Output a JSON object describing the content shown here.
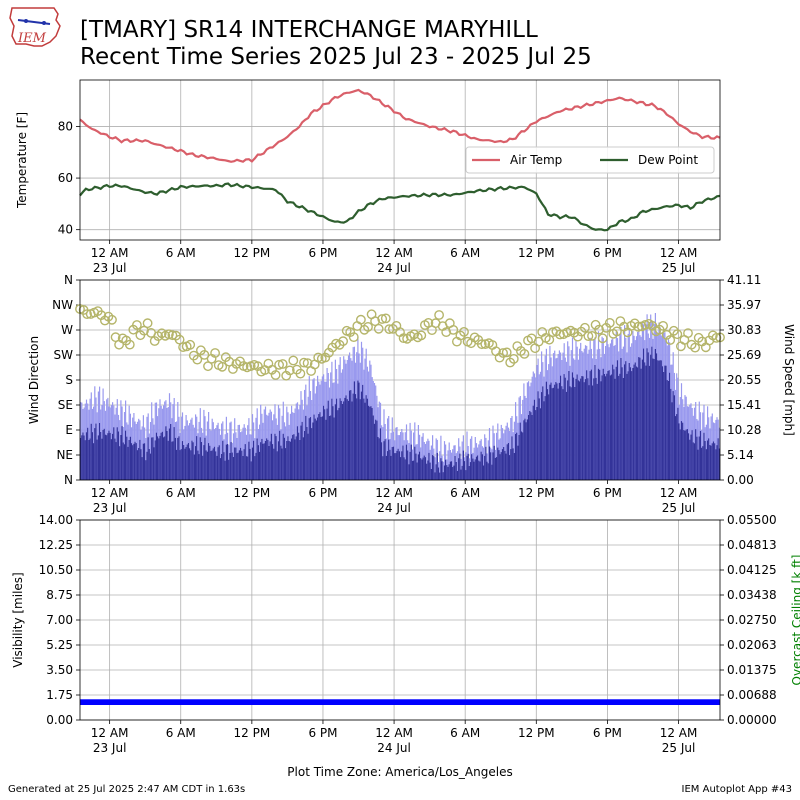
{
  "header": {
    "title_line1": "[TMARY] SR14 INTERCHANGE MARYHILL",
    "title_line2": "Recent Time Series 2025 Jul 23 - 2025 Jul 25",
    "logo_text": "IEM"
  },
  "footer": {
    "generated": "Generated at 25 Jul 2025 2:47 AM CDT in 1.63s",
    "app": "IEM Autoplot App #43",
    "timezone": "Plot Time Zone: America/Los_Angeles"
  },
  "colors": {
    "temp": "#d95f69",
    "dew": "#2e5e2e",
    "gust": "#9999ee",
    "speed": "#333399",
    "dir": "#b5b56a",
    "vis": "#0000ff",
    "ceiling": "#008000"
  },
  "chart_data": [
    {
      "type": "line",
      "xlim": [
        -2.5,
        51.5
      ],
      "x_ticks": [
        0,
        6,
        12,
        18,
        24,
        30,
        36,
        42,
        48
      ],
      "x_tick_labels": [
        "12 AM",
        "6 AM",
        "12 PM",
        "6 PM",
        "12 AM",
        "6 AM",
        "12 PM",
        "6 PM",
        "12 AM"
      ],
      "x_date_labels": [
        {
          "at": 0,
          "text": "23 Jul"
        },
        {
          "at": 24,
          "text": "24 Jul"
        },
        {
          "at": 48,
          "text": "25 Jul"
        }
      ],
      "ylabel": "Temperature [F]",
      "ylim": [
        36,
        98
      ],
      "y_ticks": [
        40,
        60,
        80
      ],
      "grid": true,
      "legend": "right",
      "series": [
        {
          "name": "Air Temp",
          "points": [
            [
              -2.5,
              82.5
            ],
            [
              -1.5,
              79
            ],
            [
              0,
              76
            ],
            [
              1,
              74.5
            ],
            [
              3,
              74.5
            ],
            [
              4,
              73
            ],
            [
              6,
              70.5
            ],
            [
              7,
              69
            ],
            [
              9,
              67.5
            ],
            [
              10,
              66.5
            ],
            [
              12,
              67
            ],
            [
              13,
              70
            ],
            [
              15,
              76
            ],
            [
              16,
              80
            ],
            [
              17,
              85
            ],
            [
              18,
              88
            ],
            [
              19,
              91
            ],
            [
              20,
              93
            ],
            [
              21,
              94
            ],
            [
              22,
              92
            ],
            [
              23,
              89
            ],
            [
              24,
              86
            ],
            [
              25,
              83
            ],
            [
              27,
              80
            ],
            [
              29,
              78
            ],
            [
              31,
              75
            ],
            [
              33,
              74
            ],
            [
              34,
              75
            ],
            [
              36,
              82
            ],
            [
              38,
              86
            ],
            [
              40,
              88
            ],
            [
              42,
              90
            ],
            [
              43,
              91
            ],
            [
              44,
              90
            ],
            [
              46,
              88
            ],
            [
              47,
              85
            ],
            [
              48,
              81
            ],
            [
              49,
              78
            ],
            [
              50,
              76
            ],
            [
              51.5,
              75.5
            ]
          ]
        },
        {
          "name": "Dew Point",
          "points": [
            [
              -2.5,
              53.5
            ],
            [
              -2,
              55.5
            ],
            [
              0,
              57
            ],
            [
              1,
              57
            ],
            [
              3,
              54.5
            ],
            [
              4,
              54
            ],
            [
              6,
              56.5
            ],
            [
              8,
              57
            ],
            [
              9,
              57
            ],
            [
              10,
              57.5
            ],
            [
              12,
              56.5
            ],
            [
              14,
              55.5
            ],
            [
              15,
              51
            ],
            [
              17,
              47
            ],
            [
              18,
              45
            ],
            [
              19,
              43
            ],
            [
              20,
              43
            ],
            [
              21,
              47
            ],
            [
              22,
              50
            ],
            [
              23,
              52
            ],
            [
              25,
              53
            ],
            [
              27,
              53.5
            ],
            [
              29,
              53.5
            ],
            [
              31,
              55
            ],
            [
              33,
              56
            ],
            [
              35,
              56.5
            ],
            [
              36,
              54
            ],
            [
              37,
              46
            ],
            [
              38,
              45
            ],
            [
              39,
              45
            ],
            [
              40,
              42
            ],
            [
              41,
              40
            ],
            [
              42,
              40
            ],
            [
              43,
              43
            ],
            [
              44,
              44
            ],
            [
              45,
              47
            ],
            [
              47,
              49
            ],
            [
              48,
              49.5
            ],
            [
              49,
              48.5
            ],
            [
              50,
              51
            ],
            [
              51.5,
              53
            ]
          ]
        }
      ]
    },
    {
      "type": "bar",
      "xlim": [
        -2.5,
        51.5
      ],
      "x_ticks": [
        0,
        6,
        12,
        18,
        24,
        30,
        36,
        42,
        48
      ],
      "x_tick_labels": [
        "12 AM",
        "6 AM",
        "12 PM",
        "6 PM",
        "12 AM",
        "6 AM",
        "12 PM",
        "6 PM",
        "12 AM"
      ],
      "x_date_labels": [
        {
          "at": 0,
          "text": "23 Jul"
        },
        {
          "at": 24,
          "text": "24 Jul"
        },
        {
          "at": 48,
          "text": "25 Jul"
        }
      ],
      "ylabel_left": "Wind Direction",
      "y_left_ticks": [
        "N",
        "NE",
        "E",
        "SE",
        "S",
        "SW",
        "W",
        "NW",
        "N"
      ],
      "ylabel_right": "Wind Speed [mph]",
      "y_right_ticks": [
        "0.00",
        "5.14",
        "10.28",
        "15.41",
        "20.55",
        "25.69",
        "30.83",
        "35.97",
        "41.11"
      ],
      "ylim_right": [
        0,
        41.11
      ],
      "grid": true,
      "series": [
        {
          "role": "gust",
          "points": [
            [
              -2.5,
              15
            ],
            [
              -1,
              17
            ],
            [
              1,
              14
            ],
            [
              3,
              11
            ],
            [
              4,
              15
            ],
            [
              5,
              16
            ],
            [
              6,
              12
            ],
            [
              8,
              12
            ],
            [
              9,
              11
            ],
            [
              10,
              10
            ],
            [
              12,
              11
            ],
            [
              13,
              14
            ],
            [
              15,
              13
            ],
            [
              16,
              16
            ],
            [
              17,
              19
            ],
            [
              18,
              21
            ],
            [
              19,
              22
            ],
            [
              20,
              25
            ],
            [
              21,
              27
            ],
            [
              22,
              23
            ],
            [
              23,
              12
            ],
            [
              24,
              10
            ],
            [
              26,
              9
            ],
            [
              28,
              6
            ],
            [
              30,
              7
            ],
            [
              32,
              8
            ],
            [
              34,
              12
            ],
            [
              35,
              18
            ],
            [
              36,
              23
            ],
            [
              37,
              25
            ],
            [
              38,
              26
            ],
            [
              40,
              27
            ],
            [
              42,
              28
            ],
            [
              43,
              29
            ],
            [
              44,
              29
            ],
            [
              45,
              31
            ],
            [
              46,
              32
            ],
            [
              47,
              29
            ],
            [
              48,
              18
            ],
            [
              49,
              15
            ],
            [
              50,
              13
            ],
            [
              51.5,
              12
            ]
          ]
        },
        {
          "role": "speed",
          "points": [
            [
              -2.5,
              9
            ],
            [
              -1,
              10
            ],
            [
              1,
              9
            ],
            [
              3,
              6
            ],
            [
              4,
              9
            ],
            [
              5,
              10
            ],
            [
              6,
              7
            ],
            [
              8,
              7
            ],
            [
              9,
              6
            ],
            [
              10,
              6
            ],
            [
              12,
              6
            ],
            [
              13,
              8
            ],
            [
              15,
              8
            ],
            [
              16,
              10
            ],
            [
              17,
              12
            ],
            [
              18,
              14
            ],
            [
              19,
              15
            ],
            [
              20,
              17
            ],
            [
              21,
              19
            ],
            [
              22,
              15
            ],
            [
              23,
              7
            ],
            [
              24,
              6
            ],
            [
              26,
              5
            ],
            [
              28,
              3
            ],
            [
              30,
              4
            ],
            [
              32,
              5
            ],
            [
              34,
              7
            ],
            [
              35,
              12
            ],
            [
              36,
              16
            ],
            [
              37,
              19
            ],
            [
              38,
              20
            ],
            [
              40,
              21
            ],
            [
              42,
              22
            ],
            [
              43,
              23
            ],
            [
              44,
              23
            ],
            [
              45,
              25
            ],
            [
              46,
              26
            ],
            [
              47,
              22
            ],
            [
              48,
              12
            ],
            [
              49,
              9
            ],
            [
              50,
              8
            ],
            [
              51.5,
              7
            ]
          ]
        },
        {
          "role": "direction",
          "points": [
            [
              -2.5,
              303
            ],
            [
              -1,
              300
            ],
            [
              0,
              290
            ],
            [
              1,
              240
            ],
            [
              2,
              265
            ],
            [
              3,
              275
            ],
            [
              4,
              255
            ],
            [
              5,
              265
            ],
            [
              6,
              250
            ],
            [
              7,
              230
            ],
            [
              8,
              220
            ],
            [
              9,
              215
            ],
            [
              10,
              210
            ],
            [
              12,
              205
            ],
            [
              13,
              200
            ],
            [
              15,
              200
            ],
            [
              17,
              205
            ],
            [
              18,
              220
            ],
            [
              19,
              240
            ],
            [
              20,
              260
            ],
            [
              21,
              275
            ],
            [
              22,
              285
            ],
            [
              23,
              285
            ],
            [
              24,
              275
            ],
            [
              25,
              255
            ],
            [
              26,
              260
            ],
            [
              27,
              280
            ],
            [
              28,
              285
            ],
            [
              29,
              265
            ],
            [
              30,
              255
            ],
            [
              31,
              250
            ],
            [
              32,
              245
            ],
            [
              33,
              225
            ],
            [
              34,
              220
            ],
            [
              35,
              240
            ],
            [
              36,
              250
            ],
            [
              37,
              260
            ],
            [
              38,
              265
            ],
            [
              40,
              265
            ],
            [
              42,
              270
            ],
            [
              43,
              275
            ],
            [
              44,
              275
            ],
            [
              45,
              280
            ],
            [
              46,
              275
            ],
            [
              47,
              265
            ],
            [
              48,
              255
            ],
            [
              49,
              250
            ],
            [
              50,
              245
            ],
            [
              51.5,
              260
            ]
          ]
        }
      ]
    },
    {
      "type": "line",
      "xlim": [
        -2.5,
        51.5
      ],
      "x_ticks": [
        0,
        6,
        12,
        18,
        24,
        30,
        36,
        42,
        48
      ],
      "x_tick_labels": [
        "12 AM",
        "6 AM",
        "12 PM",
        "6 PM",
        "12 AM",
        "6 AM",
        "12 PM",
        "6 PM",
        "12 AM"
      ],
      "x_date_labels": [
        {
          "at": 0,
          "text": "23 Jul"
        },
        {
          "at": 24,
          "text": "24 Jul"
        },
        {
          "at": 48,
          "text": "25 Jul"
        }
      ],
      "ylabel_left": "Visibility [miles]",
      "y_left_ticks": [
        "0.00",
        "1.75",
        "3.50",
        "5.25",
        "7.00",
        "8.75",
        "10.50",
        "12.25",
        "14.00"
      ],
      "ylim_left": [
        0,
        14
      ],
      "ylabel_right": "Overcast Ceiling [k ft]",
      "y_right_ticks": [
        "0.00000",
        "0.00688",
        "0.01375",
        "0.02063",
        "0.02750",
        "0.03438",
        "0.04125",
        "0.04813",
        "0.05500"
      ],
      "grid": true,
      "series": [
        {
          "role": "visibility",
          "value_range": [
            1.05,
            1.45
          ]
        }
      ]
    }
  ]
}
